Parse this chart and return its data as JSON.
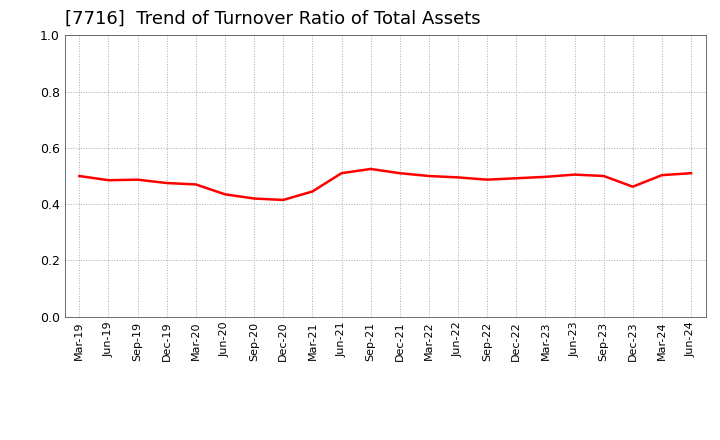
{
  "title": "[7716]  Trend of Turnover Ratio of Total Assets",
  "title_fontsize": 13,
  "line_color": "#ff0000",
  "line_width": 1.8,
  "background_color": "#ffffff",
  "ylim": [
    0.0,
    1.0
  ],
  "yticks": [
    0.0,
    0.2,
    0.4,
    0.6,
    0.8,
    1.0
  ],
  "labels": [
    "Mar-19",
    "Jun-19",
    "Sep-19",
    "Dec-19",
    "Mar-20",
    "Jun-20",
    "Sep-20",
    "Dec-20",
    "Mar-21",
    "Jun-21",
    "Sep-21",
    "Dec-21",
    "Mar-22",
    "Jun-22",
    "Sep-22",
    "Dec-22",
    "Mar-23",
    "Jun-23",
    "Sep-23",
    "Dec-23",
    "Mar-24",
    "Jun-24"
  ],
  "values": [
    0.5,
    0.485,
    0.487,
    0.475,
    0.47,
    0.435,
    0.42,
    0.415,
    0.445,
    0.51,
    0.525,
    0.51,
    0.5,
    0.495,
    0.487,
    0.492,
    0.497,
    0.505,
    0.5,
    0.462,
    0.503,
    0.51
  ],
  "grid_color": "#aaaaaa",
  "tick_label_fontsize": 8,
  "ytick_label_fontsize": 9
}
